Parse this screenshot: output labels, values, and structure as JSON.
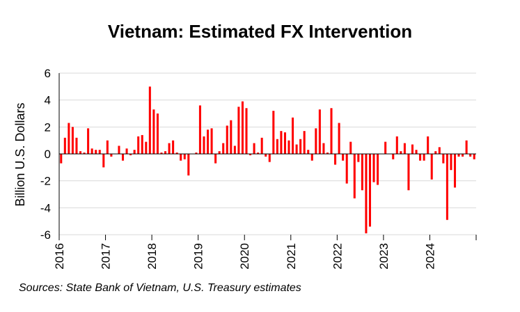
{
  "chart_data": {
    "type": "bar",
    "title": "Vietnam: Estimated FX Intervention",
    "ylabel": "Billion U.S. Dollars",
    "xlabel": "",
    "ylim": [
      -6,
      6
    ],
    "yticks": [
      6,
      4,
      2,
      0,
      -2,
      -4,
      -6
    ],
    "year_ticks": [
      "2016",
      "2017",
      "2018",
      "2019",
      "2020",
      "2021",
      "2022",
      "2023",
      "2024"
    ],
    "bar_color": "#ff0000",
    "grid": "horizontal",
    "frequency": "monthly",
    "start": "2016-01",
    "values": [
      -0.7,
      1.2,
      2.3,
      2.0,
      1.2,
      0.2,
      0.1,
      1.9,
      0.4,
      0.3,
      0.3,
      -1.0,
      1.0,
      -0.2,
      0.0,
      0.6,
      -0.5,
      0.4,
      -0.1,
      0.3,
      1.3,
      1.4,
      0.9,
      5.0,
      3.3,
      3.0,
      0.1,
      0.2,
      0.8,
      1.0,
      0.1,
      -0.5,
      -0.4,
      -1.6,
      0.0,
      0.1,
      3.6,
      1.3,
      1.8,
      1.9,
      -0.7,
      0.2,
      0.8,
      2.1,
      2.5,
      0.6,
      3.5,
      3.9,
      3.4,
      -0.1,
      0.8,
      0.1,
      1.2,
      -0.2,
      -0.6,
      3.2,
      1.1,
      1.7,
      1.6,
      1.0,
      2.7,
      0.7,
      1.1,
      1.7,
      0.3,
      -0.5,
      1.9,
      3.3,
      0.8,
      0.1,
      3.4,
      -0.8,
      2.3,
      -0.5,
      -2.2,
      0.9,
      -3.3,
      -0.6,
      -2.7,
      -5.9,
      -5.4,
      -2.1,
      -2.3,
      0.0,
      0.9,
      0.0,
      -0.4,
      1.3,
      0.2,
      0.8,
      -2.7,
      0.7,
      0.3,
      -0.5,
      -0.5,
      1.3,
      -1.9,
      0.2,
      0.5,
      -0.7,
      -4.9,
      -1.2,
      -2.5,
      -0.2,
      -0.2,
      1.0,
      -0.2,
      -0.4
    ]
  },
  "source_note": "Sources: State Bank of Vietnam, U.S. Treasury estimates"
}
